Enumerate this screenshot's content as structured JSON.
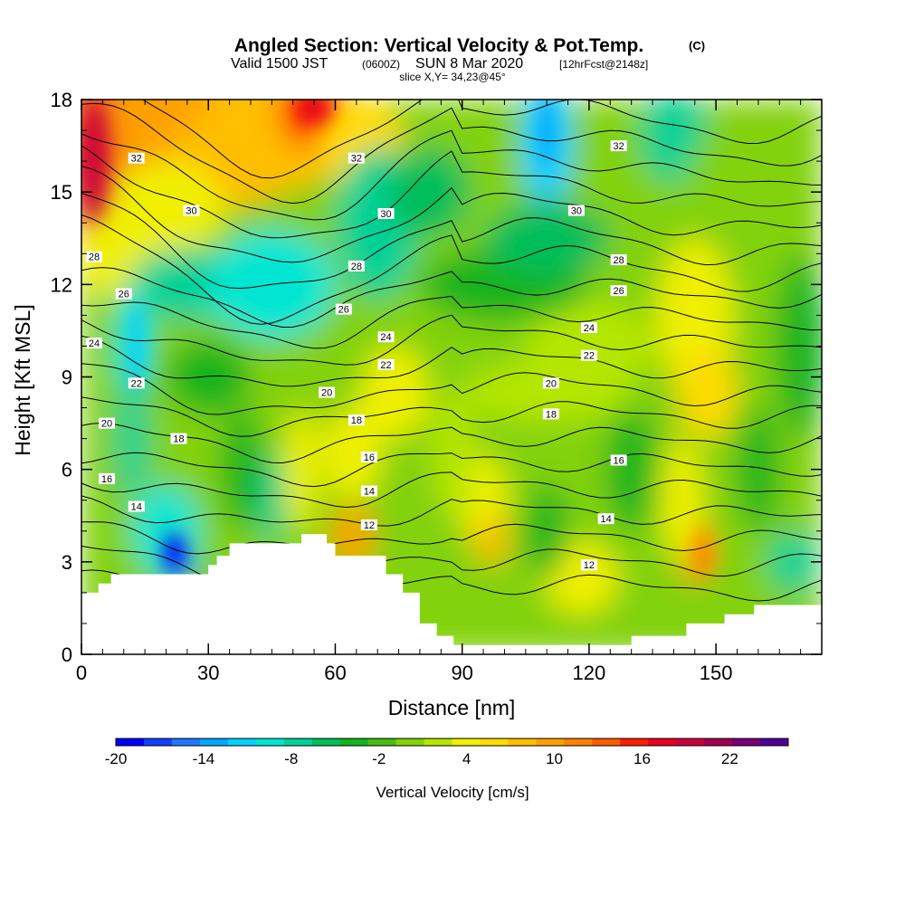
{
  "header": {
    "title": "Angled Section: Vertical Velocity & Pot.Temp.",
    "title_mark": "(C)",
    "valid_prefix": "Valid 1500 JST",
    "valid_utc": "(0600Z)",
    "valid_date": "SUN 8 Mar 2020",
    "forecast": "[12hrFcst@2148z]",
    "slice": "slice X,Y= 34,23@45°"
  },
  "chart_data": {
    "type": "heatmap",
    "title": "Angled Section: Vertical Velocity & Pot.Temp.",
    "xlabel": "Distance [nm]",
    "ylabel": "Height [Kft MSL]",
    "xlim": [
      0,
      175
    ],
    "ylim": [
      0,
      18
    ],
    "x_ticks": [
      "0",
      "30",
      "60",
      "90",
      "120",
      "150"
    ],
    "y_ticks": [
      "0",
      "3",
      "6",
      "9",
      "12",
      "15",
      "18"
    ],
    "x_tick_values": [
      0,
      30,
      60,
      90,
      120,
      150
    ],
    "y_tick_values": [
      0,
      3,
      6,
      9,
      12,
      15,
      18
    ],
    "colorbar": {
      "title": "Vertical Velocity [cm/s]",
      "min": -20,
      "max": 26,
      "step": 2,
      "tick_labels": [
        "-20",
        "-14",
        "-8",
        "-2",
        "4",
        "10",
        "16",
        "22"
      ],
      "tick_values": [
        -20,
        -14,
        -8,
        -2,
        4,
        10,
        16,
        22
      ],
      "colors": [
        "#0000ff",
        "#1040ff",
        "#1e78ff",
        "#00a8ff",
        "#00d2ff",
        "#00e6d2",
        "#00d296",
        "#00be5a",
        "#14b41e",
        "#46be14",
        "#82d20a",
        "#b4e600",
        "#f0f000",
        "#ffdc00",
        "#ffbe00",
        "#ffa000",
        "#ff8200",
        "#ff5a00",
        "#ff1e00",
        "#e6001e",
        "#c8003c",
        "#a00050",
        "#780078",
        "#500096"
      ]
    },
    "contour_series": {
      "name": "Potential Temperature",
      "unit": "C",
      "levels": [
        12,
        14,
        16,
        18,
        20,
        22,
        24,
        26,
        28,
        30,
        32
      ],
      "labels": [
        {
          "text": "32",
          "x": 13,
          "y": 16.1
        },
        {
          "text": "32",
          "x": 65,
          "y": 16.1
        },
        {
          "text": "32",
          "x": 127,
          "y": 16.5
        },
        {
          "text": "30",
          "x": 26,
          "y": 14.4
        },
        {
          "text": "30",
          "x": 72,
          "y": 14.3
        },
        {
          "text": "30",
          "x": 117,
          "y": 14.4
        },
        {
          "text": "28",
          "x": 3,
          "y": 12.9
        },
        {
          "text": "28",
          "x": 65,
          "y": 12.6
        },
        {
          "text": "28",
          "x": 127,
          "y": 12.8
        },
        {
          "text": "26",
          "x": 10,
          "y": 11.7
        },
        {
          "text": "26",
          "x": 62,
          "y": 11.2
        },
        {
          "text": "26",
          "x": 127,
          "y": 11.8
        },
        {
          "text": "24",
          "x": 3,
          "y": 10.1
        },
        {
          "text": "24",
          "x": 72,
          "y": 10.3
        },
        {
          "text": "24",
          "x": 120,
          "y": 10.6
        },
        {
          "text": "22",
          "x": 13,
          "y": 8.8
        },
        {
          "text": "22",
          "x": 72,
          "y": 9.4
        },
        {
          "text": "22",
          "x": 120,
          "y": 9.7
        },
        {
          "text": "20",
          "x": 6,
          "y": 7.5
        },
        {
          "text": "20",
          "x": 58,
          "y": 8.5
        },
        {
          "text": "20",
          "x": 111,
          "y": 8.8
        },
        {
          "text": "18",
          "x": 23,
          "y": 7.0
        },
        {
          "text": "18",
          "x": 65,
          "y": 7.6
        },
        {
          "text": "18",
          "x": 111,
          "y": 7.8
        },
        {
          "text": "16",
          "x": 6,
          "y": 5.7
        },
        {
          "text": "16",
          "x": 68,
          "y": 6.4
        },
        {
          "text": "16",
          "x": 127,
          "y": 6.3
        },
        {
          "text": "14",
          "x": 13,
          "y": 4.8
        },
        {
          "text": "14",
          "x": 68,
          "y": 5.3
        },
        {
          "text": "14",
          "x": 124,
          "y": 4.4
        },
        {
          "text": "12",
          "x": 68,
          "y": 4.2
        },
        {
          "text": "12",
          "x": 120,
          "y": 2.9
        }
      ]
    },
    "terrain": {
      "name": "Terrain (masked)",
      "x": [
        0,
        4,
        4,
        7,
        7,
        10,
        10,
        17,
        17,
        24,
        24,
        30,
        30,
        32,
        32,
        35,
        35,
        38,
        38,
        52,
        52,
        58,
        58,
        60,
        60,
        63,
        63,
        72,
        72,
        76,
        76,
        80,
        80,
        84,
        84,
        88,
        88,
        92,
        92,
        104,
        104,
        130,
        130,
        143,
        143,
        152,
        152,
        159,
        159,
        175
      ],
      "y": [
        2.0,
        2.0,
        2.3,
        2.3,
        2.6,
        2.6,
        2.6,
        2.6,
        2.6,
        2.6,
        2.6,
        2.6,
        2.9,
        2.9,
        3.2,
        3.2,
        3.6,
        3.6,
        3.6,
        3.6,
        3.9,
        3.9,
        3.6,
        3.6,
        3.2,
        3.2,
        3.2,
        3.2,
        2.6,
        2.6,
        2.0,
        2.0,
        1.0,
        1.0,
        0.6,
        0.6,
        0.3,
        0.3,
        0.3,
        0.3,
        0.3,
        0.3,
        0.6,
        0.6,
        1.0,
        1.0,
        1.3,
        1.3,
        1.6,
        1.6
      ]
    }
  }
}
